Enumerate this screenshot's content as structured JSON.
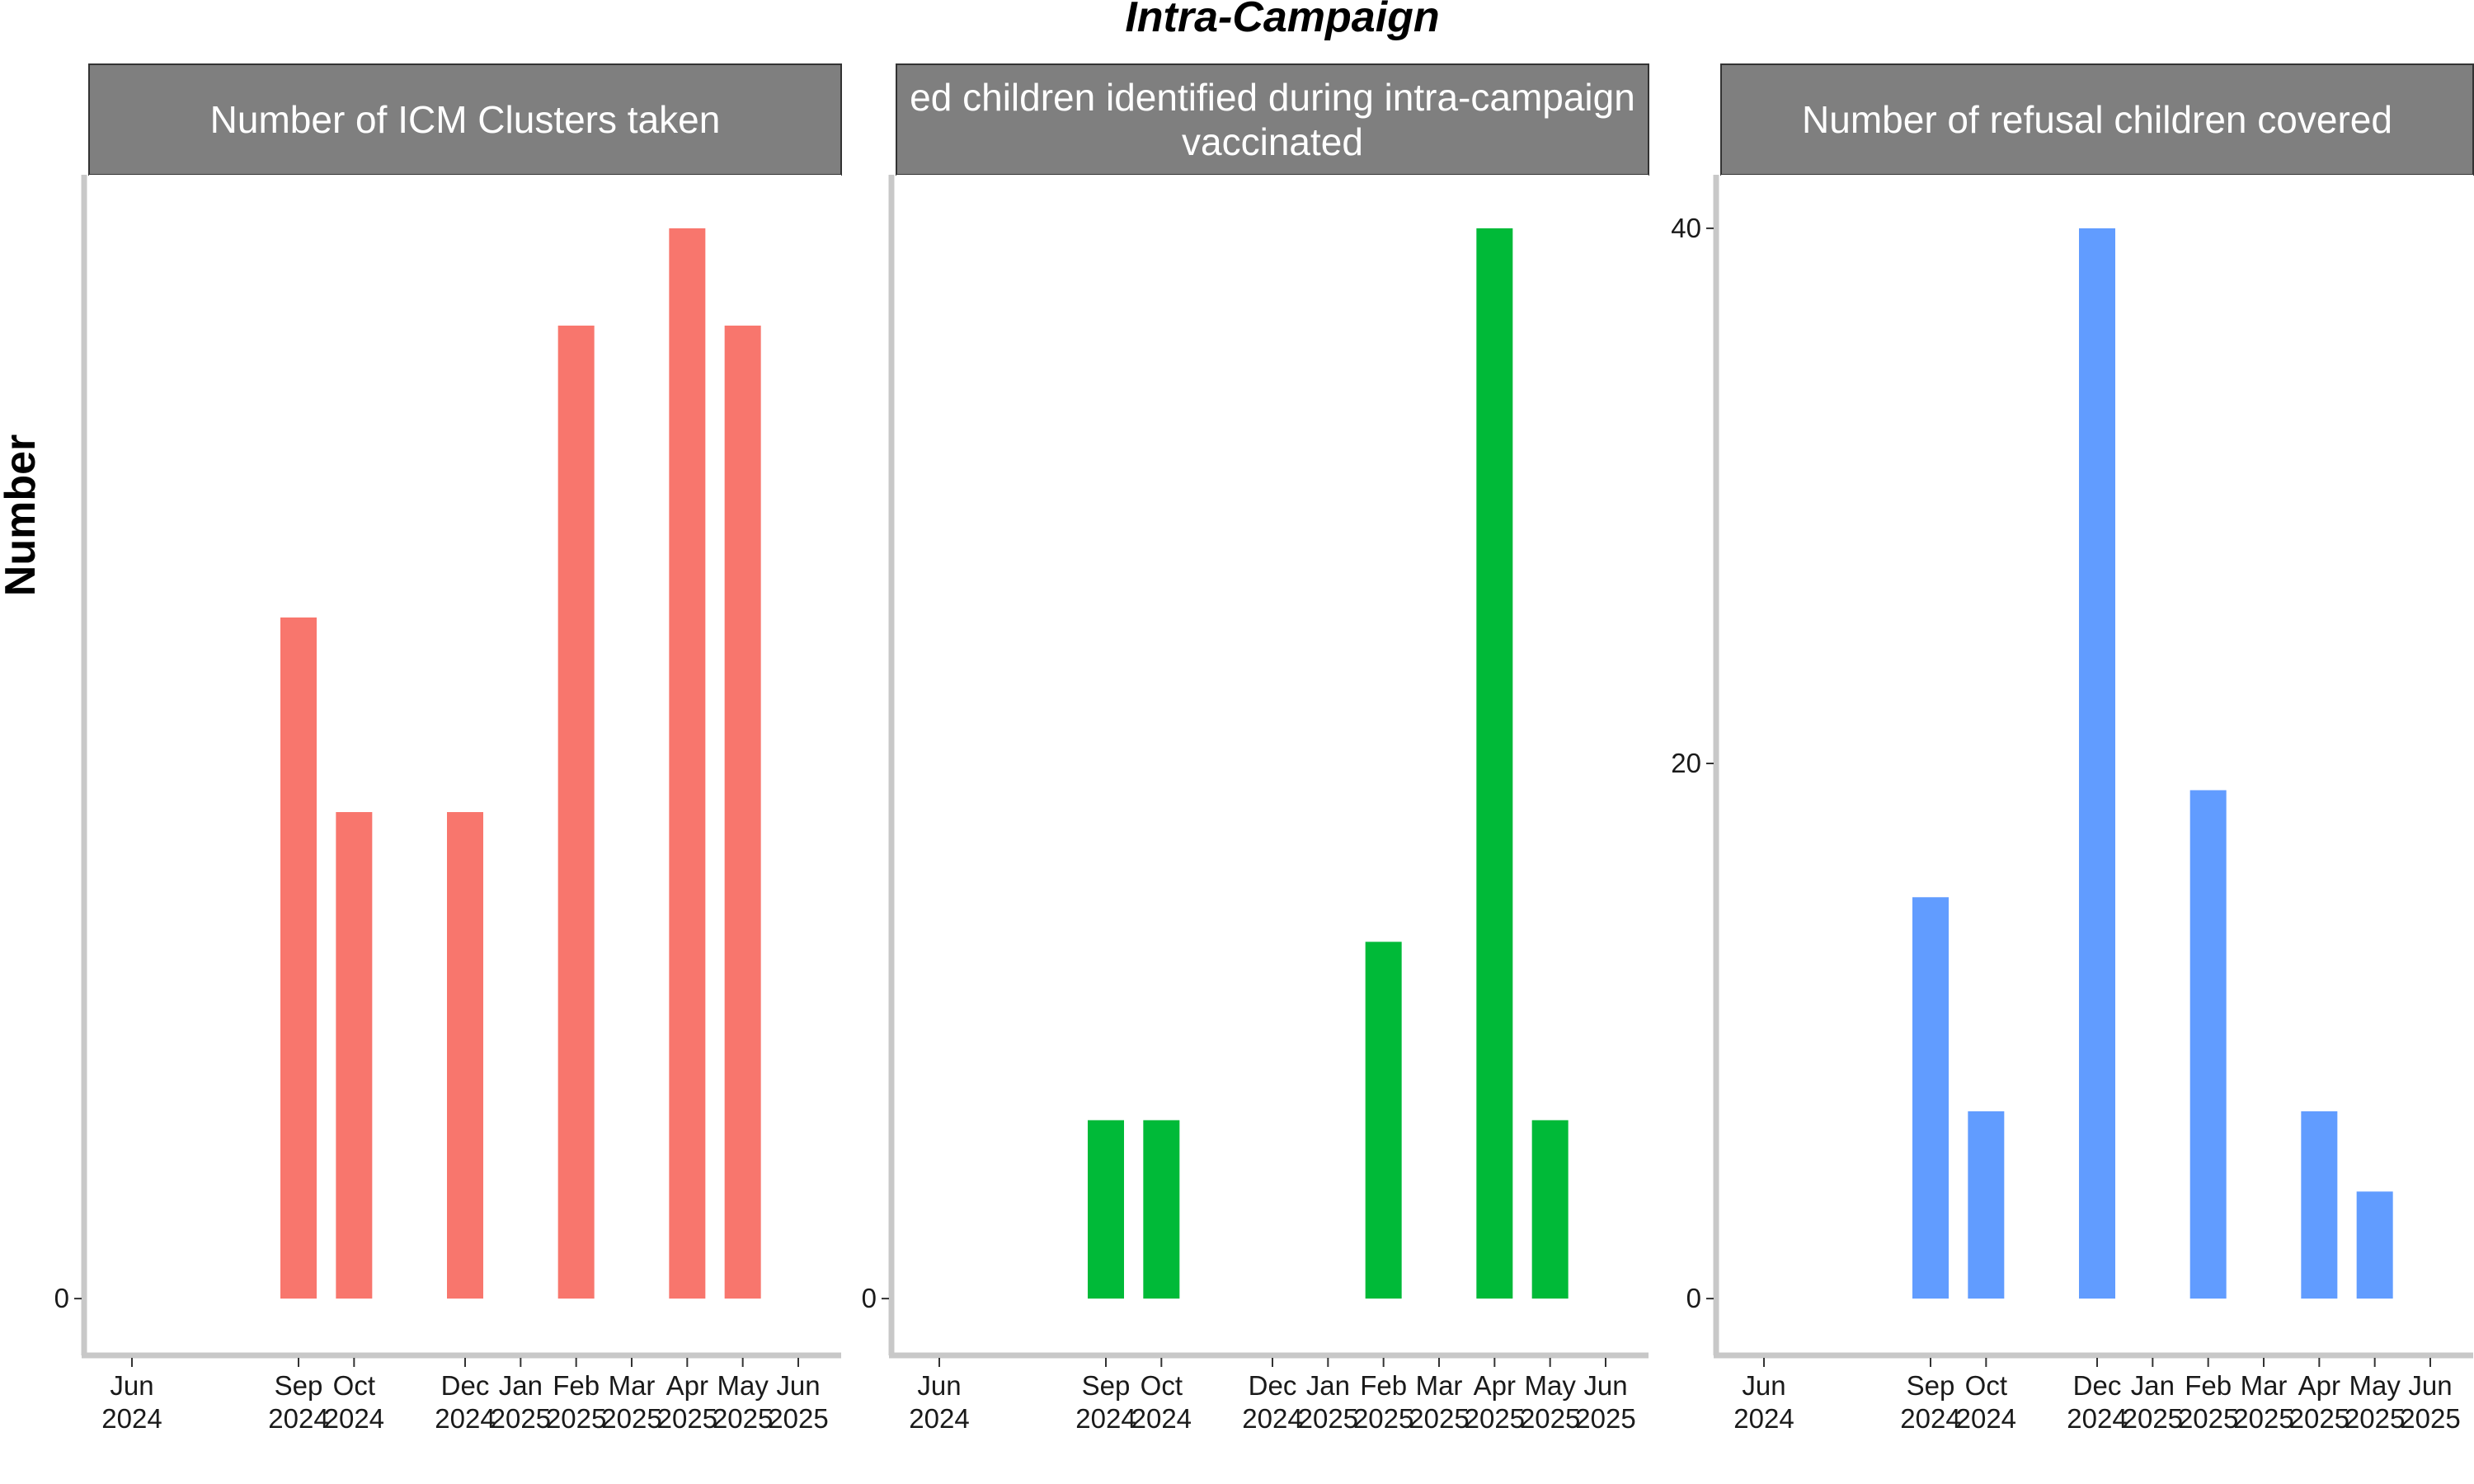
{
  "title": "Intra-Campaign",
  "ylabel": "Number",
  "chart_data": [
    {
      "type": "bar",
      "panel_title_lines": [
        "Number of ICM Clusters taken"
      ],
      "color": "#F8766D",
      "x_ticks": [
        "Jun\n2024",
        "Sep\n2024",
        "Oct\n2024",
        "Dec\n2024",
        "Jan\n2025",
        "Feb\n2025",
        "Mar\n2025",
        "Apr\n2025",
        "May\n2025",
        "Jun\n2025"
      ],
      "categories": [
        "Sep 2024",
        "Oct 2024",
        "Dec 2024",
        "Feb 2025",
        "Apr 2025",
        "May 2025"
      ],
      "values": [
        7,
        5,
        5,
        10,
        11,
        10
      ],
      "ylim": [
        -0.55,
        11.55
      ],
      "y_ticks": [
        0
      ],
      "y_tick_labels": [
        "0"
      ]
    },
    {
      "type": "bar",
      "panel_title_lines": [
        "ed children identified during intra-campaign",
        "vaccinated"
      ],
      "color": "#00BA38",
      "x_ticks": [
        "Jun\n2024",
        "Sep\n2024",
        "Oct\n2024",
        "Dec\n2024",
        "Jan\n2025",
        "Feb\n2025",
        "Mar\n2025",
        "Apr\n2025",
        "May\n2025",
        "Jun\n2025"
      ],
      "categories": [
        "Sep 2024",
        "Oct 2024",
        "Feb 2025",
        "Apr 2025",
        "May 2025"
      ],
      "values": [
        2,
        2,
        4,
        12,
        2
      ],
      "ylim": [
        -0.6,
        12.6
      ],
      "y_ticks": [
        0
      ],
      "y_tick_labels": [
        "0"
      ]
    },
    {
      "type": "bar",
      "panel_title_lines": [
        "Number of refusal children covered"
      ],
      "color": "#619CFF",
      "x_ticks": [
        "Jun\n2024",
        "Sep\n2024",
        "Oct\n2024",
        "Dec\n2024",
        "Jan\n2025",
        "Feb\n2025",
        "Mar\n2025",
        "Apr\n2025",
        "May\n2025",
        "Jun\n2025"
      ],
      "categories": [
        "Sep 2024",
        "Oct 2024",
        "Dec 2024",
        "Feb 2025",
        "Apr 2025",
        "May 2025"
      ],
      "values": [
        15,
        7,
        40,
        19,
        7,
        4
      ],
      "ylim": [
        -2,
        42
      ],
      "y_ticks": [
        0,
        20,
        40
      ],
      "y_tick_labels": [
        "0",
        "20",
        "40"
      ]
    }
  ]
}
